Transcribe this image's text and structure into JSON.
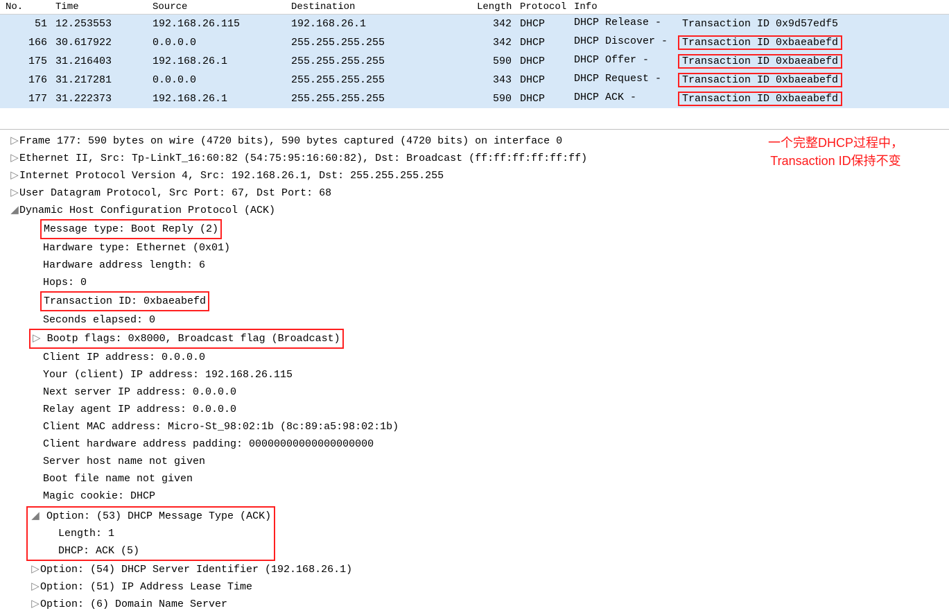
{
  "columns": {
    "no": "No.",
    "time": "Time",
    "source": "Source",
    "destination": "Destination",
    "length": "Length",
    "protocol": "Protocol",
    "info": "Info"
  },
  "packets": [
    {
      "no": "51",
      "time": "12.253553",
      "src": "192.168.26.115",
      "dst": "192.168.26.1",
      "len": "342",
      "proto": "DHCP",
      "info_prefix": "DHCP Release  - ",
      "info_tx": "Transaction ID 0x9d57edf5",
      "boxed": false
    },
    {
      "no": "166",
      "time": "30.617922",
      "src": "0.0.0.0",
      "dst": "255.255.255.255",
      "len": "342",
      "proto": "DHCP",
      "info_prefix": "DHCP Discover - ",
      "info_tx": "Transaction ID 0xbaeabefd",
      "boxed": true
    },
    {
      "no": "175",
      "time": "31.216403",
      "src": "192.168.26.1",
      "dst": "255.255.255.255",
      "len": "590",
      "proto": "DHCP",
      "info_prefix": "DHCP Offer    - ",
      "info_tx": "Transaction ID 0xbaeabefd",
      "boxed": true
    },
    {
      "no": "176",
      "time": "31.217281",
      "src": "0.0.0.0",
      "dst": "255.255.255.255",
      "len": "343",
      "proto": "DHCP",
      "info_prefix": "DHCP Request  - ",
      "info_tx": "Transaction ID 0xbaeabefd",
      "boxed": true
    },
    {
      "no": "177",
      "time": "31.222373",
      "src": "192.168.26.1",
      "dst": "255.255.255.255",
      "len": "590",
      "proto": "DHCP",
      "info_prefix": "DHCP ACK      - ",
      "info_tx": "Transaction ID 0xbaeabefd",
      "boxed": true
    }
  ],
  "annotation_line1": "一个完整DHCP过程中，",
  "annotation_line2": "Transaction ID保持不变",
  "tree": {
    "frame": "Frame 177: 590 bytes on wire (4720 bits), 590 bytes captured (4720 bits) on interface 0",
    "eth": "Ethernet II, Src: Tp-LinkT_16:60:82 (54:75:95:16:60:82), Dst: Broadcast (ff:ff:ff:ff:ff:ff)",
    "ip": "Internet Protocol Version 4, Src: 192.168.26.1, Dst: 255.255.255.255",
    "udp": "User Datagram Protocol, Src Port: 67, Dst Port: 68",
    "dhcp_hdr": "Dynamic Host Configuration Protocol (ACK)",
    "msgtype": "Message type: Boot Reply (2)",
    "hwtype": "Hardware type: Ethernet (0x01)",
    "hwlen": "Hardware address length: 6",
    "hops": "Hops: 0",
    "txid": "Transaction ID: 0xbaeabefd",
    "secs": "Seconds elapsed: 0",
    "flags": "Bootp flags: 0x8000, Broadcast flag (Broadcast)",
    "ciaddr": "Client IP address: 0.0.0.0",
    "yiaddr": "Your (client) IP address: 192.168.26.115",
    "siaddr": "Next server IP address: 0.0.0.0",
    "giaddr": "Relay agent IP address: 0.0.0.0",
    "chaddr": "Client MAC address: Micro-St_98:02:1b (8c:89:a5:98:02:1b)",
    "chpad": "Client hardware address padding: 00000000000000000000",
    "sname": "Server host name not given",
    "bfile": "Boot file name not given",
    "cookie": "Magic cookie: DHCP",
    "opt53": "Option: (53) DHCP Message Type (ACK)",
    "opt53_len": "Length: 1",
    "opt53_val": "DHCP: ACK (5)",
    "opt54": "Option: (54) DHCP Server Identifier (192.168.26.1)",
    "opt51": "Option: (51) IP Address Lease Time",
    "opt6": "Option: (6) Domain Name Server"
  },
  "glyphs": {
    "closed": "▷",
    "open": "◢"
  },
  "colors": {
    "highlight_border": "#ff2020",
    "annotation_text": "#ff1a1a",
    "selected_row_bg": "#d7e8f8"
  }
}
